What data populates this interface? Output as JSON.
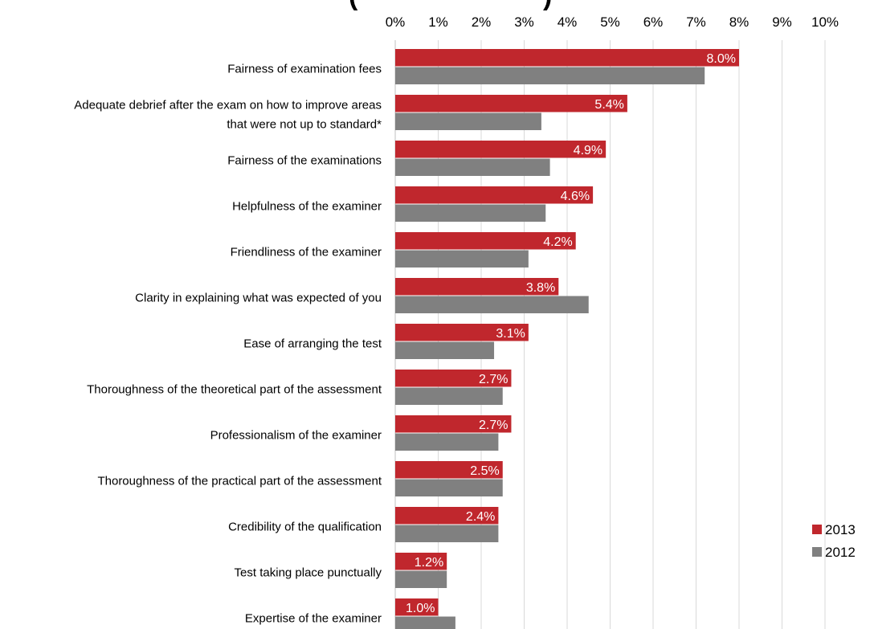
{
  "chart_data": {
    "type": "bar",
    "orientation": "horizontal",
    "title": "",
    "xlabel": "",
    "ylabel": "",
    "xlim": [
      0,
      10
    ],
    "x_ticks": [
      "0%",
      "1%",
      "2%",
      "3%",
      "4%",
      "5%",
      "6%",
      "7%",
      "8%",
      "9%",
      "10%"
    ],
    "x_axis_position": "top",
    "grid": true,
    "legend_position": "bottom-right",
    "categories": [
      [
        "Fairness of examination fees"
      ],
      [
        "Adequate debrief after the exam on how to improve areas",
        "that were not up to standard*"
      ],
      [
        "Fairness of the examinations"
      ],
      [
        "Helpfulness of the examiner"
      ],
      [
        "Friendliness of the examiner"
      ],
      [
        "Clarity in explaining what was expected of you"
      ],
      [
        "Ease of arranging the test"
      ],
      [
        "Thoroughness of the theoretical part of the assessment"
      ],
      [
        "Professionalism of the examiner"
      ],
      [
        "Thoroughness of the practical part of the assessment"
      ],
      [
        "Credibility of the qualification"
      ],
      [
        "Test taking place punctually"
      ],
      [
        "Expertise of the examiner"
      ]
    ],
    "series": [
      {
        "name": "2013",
        "color": "#c0272d",
        "values": [
          8.0,
          5.4,
          4.9,
          4.6,
          4.2,
          3.8,
          3.1,
          2.7,
          2.7,
          2.5,
          2.4,
          1.2,
          1.0
        ],
        "labels": [
          "8.0%",
          "5.4%",
          "4.9%",
          "4.6%",
          "4.2%",
          "3.8%",
          "3.1%",
          "2.7%",
          "2.7%",
          "2.5%",
          "2.4%",
          "1.2%",
          "1.0%"
        ]
      },
      {
        "name": "2012",
        "color": "#808080",
        "values": [
          7.2,
          3.4,
          3.6,
          3.5,
          3.1,
          4.5,
          2.3,
          2.5,
          2.4,
          2.5,
          2.4,
          1.2,
          1.4
        ]
      }
    ]
  }
}
